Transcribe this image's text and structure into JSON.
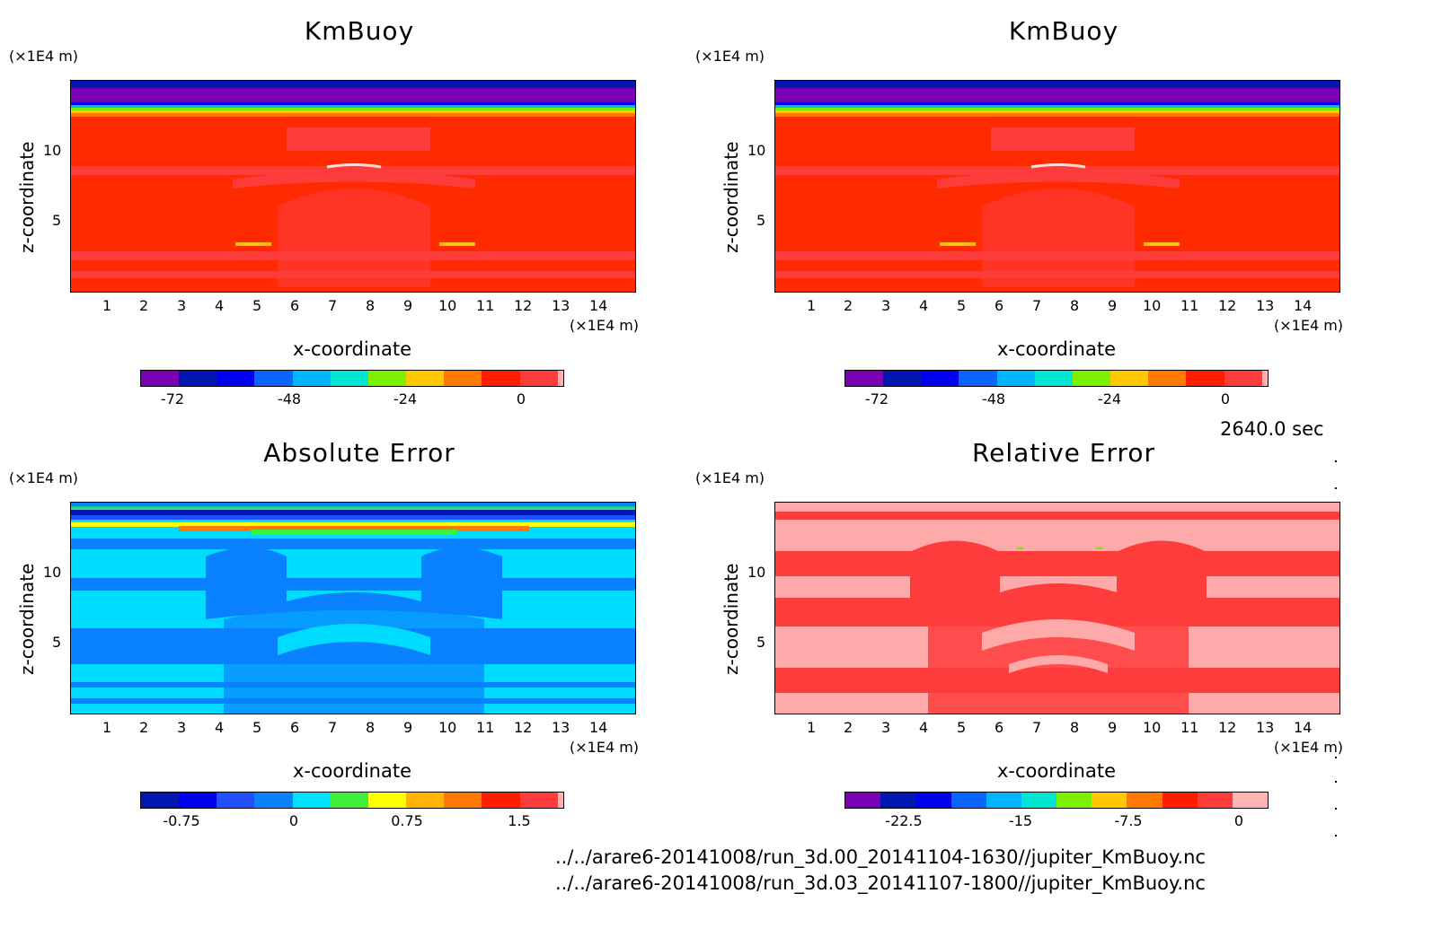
{
  "panels": [
    {
      "title": "KmBuoy",
      "y_unit": "(×1E4 m)",
      "x_unit": "(×1E4 m)",
      "ylabel": "z-coordinate",
      "xlabel": "x-coordinate",
      "x_ticks": [
        "1",
        "2",
        "3",
        "4",
        "5",
        "6",
        "7",
        "8",
        "9",
        "10",
        "11",
        "12",
        "13",
        "14"
      ],
      "y_ticks": [
        "5",
        "10"
      ],
      "colorbar_ticks": [
        "-72",
        "-48",
        "-24",
        "0"
      ],
      "colors": [
        "#7a00b4",
        "#0018b0",
        "#0000f0",
        "#0a64ff",
        "#00b4ff",
        "#00e6d2",
        "#7df000",
        "#ffc800",
        "#ff7800",
        "#ff1e00",
        "#ff3c3c",
        "#ffb4b4"
      ],
      "background": "#ff2a00"
    },
    {
      "title": "KmBuoy",
      "y_unit": "(×1E4 m)",
      "x_unit": "(×1E4 m)",
      "ylabel": "z-coordinate",
      "xlabel": "x-coordinate",
      "x_ticks": [
        "1",
        "2",
        "3",
        "4",
        "5",
        "6",
        "7",
        "8",
        "9",
        "10",
        "11",
        "12",
        "13",
        "14"
      ],
      "y_ticks": [
        "5",
        "10"
      ],
      "colorbar_ticks": [
        "-72",
        "-48",
        "-24",
        "0"
      ],
      "colors": [
        "#7a00b4",
        "#0018b0",
        "#0000f0",
        "#0a64ff",
        "#00b4ff",
        "#00e6d2",
        "#7df000",
        "#ffc800",
        "#ff7800",
        "#ff1e00",
        "#ff3c3c",
        "#ffb4b4"
      ],
      "background": "#ff2a00"
    },
    {
      "title": "Absolute Error",
      "y_unit": "(×1E4 m)",
      "x_unit": "(×1E4 m)",
      "ylabel": "z-coordinate",
      "xlabel": "x-coordinate",
      "x_ticks": [
        "1",
        "2",
        "3",
        "4",
        "5",
        "6",
        "7",
        "8",
        "9",
        "10",
        "11",
        "12",
        "13",
        "14"
      ],
      "y_ticks": [
        "5",
        "10"
      ],
      "colorbar_ticks": [
        "-0.75",
        "0",
        "0.75",
        "1.5"
      ],
      "colors": [
        "#0018b0",
        "#0000f0",
        "#1e50ff",
        "#0a82ff",
        "#00e1ff",
        "#3cf03c",
        "#ffff00",
        "#ffb400",
        "#ff7800",
        "#ff1e00",
        "#ff3c3c",
        "#ffb4b4"
      ],
      "background": "#00dcff"
    },
    {
      "title": "Relative Error",
      "y_unit": "(×1E4 m)",
      "x_unit": "(×1E4 m)",
      "ylabel": "z-coordinate",
      "xlabel": "x-coordinate",
      "x_ticks": [
        "1",
        "2",
        "3",
        "4",
        "5",
        "6",
        "7",
        "8",
        "9",
        "10",
        "11",
        "12",
        "13",
        "14"
      ],
      "y_ticks": [
        "5",
        "10"
      ],
      "colorbar_ticks": [
        "-22.5",
        "-15",
        "-7.5",
        "0"
      ],
      "colors": [
        "#7a00b4",
        "#0018b0",
        "#0000f0",
        "#0a64ff",
        "#00b4ff",
        "#00e6d2",
        "#7df000",
        "#ffc800",
        "#ff7800",
        "#ff1e00",
        "#ff3c3c",
        "#ffb4b4"
      ],
      "background": "#ffaaaa"
    }
  ],
  "chart_data": [
    {
      "type": "heatmap",
      "title": "KmBuoy",
      "xlabel": "x-coordinate",
      "ylabel": "z-coordinate",
      "xlim": [
        0,
        15
      ],
      "ylim": [
        0,
        15
      ],
      "colorbar_ticks": [
        -72,
        -48,
        -24,
        0
      ]
    },
    {
      "type": "heatmap",
      "title": "KmBuoy",
      "xlabel": "x-coordinate",
      "ylabel": "z-coordinate",
      "xlim": [
        0,
        15
      ],
      "ylim": [
        0,
        15
      ],
      "colorbar_ticks": [
        -72,
        -48,
        -24,
        0
      ]
    },
    {
      "type": "heatmap",
      "title": "Absolute Error",
      "xlabel": "x-coordinate",
      "ylabel": "z-coordinate",
      "xlim": [
        0,
        15
      ],
      "ylim": [
        0,
        15
      ],
      "colorbar_ticks": [
        -0.75,
        0,
        0.75,
        1.5
      ]
    },
    {
      "type": "heatmap",
      "title": "Relative Error",
      "xlabel": "x-coordinate",
      "ylabel": "z-coordinate",
      "xlim": [
        0,
        15
      ],
      "ylim": [
        0,
        15
      ],
      "colorbar_ticks": [
        -22.5,
        -15,
        -7.5,
        0
      ]
    }
  ],
  "time_label": "2640.0 sec",
  "paths": [
    "../../arare6-20141008/run_3d.00_20141104-1630//jupiter_KmBuoy.nc",
    "../../arare6-20141008/run_3d.03_20141107-1800//jupiter_KmBuoy.nc"
  ]
}
